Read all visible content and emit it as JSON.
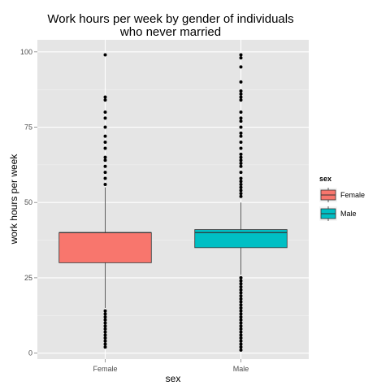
{
  "chart_data": {
    "type": "box",
    "title": "Work hours per week by gender of individuals who never married",
    "title_lines": [
      "Work hours per week by gender of individuals",
      "who never married"
    ],
    "xlabel": "sex",
    "ylabel": "work hours per week",
    "ylim": [
      -2,
      104
    ],
    "yticks": [
      0,
      25,
      50,
      75,
      100
    ],
    "categories": [
      "Female",
      "Male"
    ],
    "grid": true,
    "legend": {
      "title": "sex",
      "position": "right",
      "entries": [
        {
          "label": "Female",
          "color": "#F8766D"
        },
        {
          "label": "Male",
          "color": "#00BFC4"
        }
      ]
    },
    "boxes": [
      {
        "name": "Female",
        "color": "#F8766D",
        "whisker_low": 15,
        "q1": 30,
        "median": 40,
        "q3": 40,
        "whisker_high": 55,
        "outliers": [
          2,
          3,
          4,
          5,
          6,
          7,
          8,
          9,
          10,
          11,
          12,
          13,
          14,
          56,
          58,
          60,
          62,
          64,
          65,
          68,
          70,
          72,
          75,
          78,
          80,
          84,
          85,
          99
        ]
      },
      {
        "name": "Male",
        "color": "#00BFC4",
        "whisker_low": 26,
        "q1": 35,
        "median": 40,
        "q3": 41,
        "whisker_high": 50,
        "outliers": [
          1,
          2,
          3,
          4,
          5,
          6,
          7,
          8,
          9,
          10,
          11,
          12,
          13,
          14,
          15,
          16,
          17,
          18,
          19,
          20,
          21,
          22,
          23,
          24,
          25,
          52,
          53,
          54,
          55,
          56,
          57,
          58,
          60,
          62,
          63,
          64,
          65,
          66,
          68,
          70,
          72,
          73,
          75,
          77,
          78,
          80,
          84,
          85,
          86,
          87,
          90,
          95,
          98,
          99
        ]
      }
    ]
  }
}
